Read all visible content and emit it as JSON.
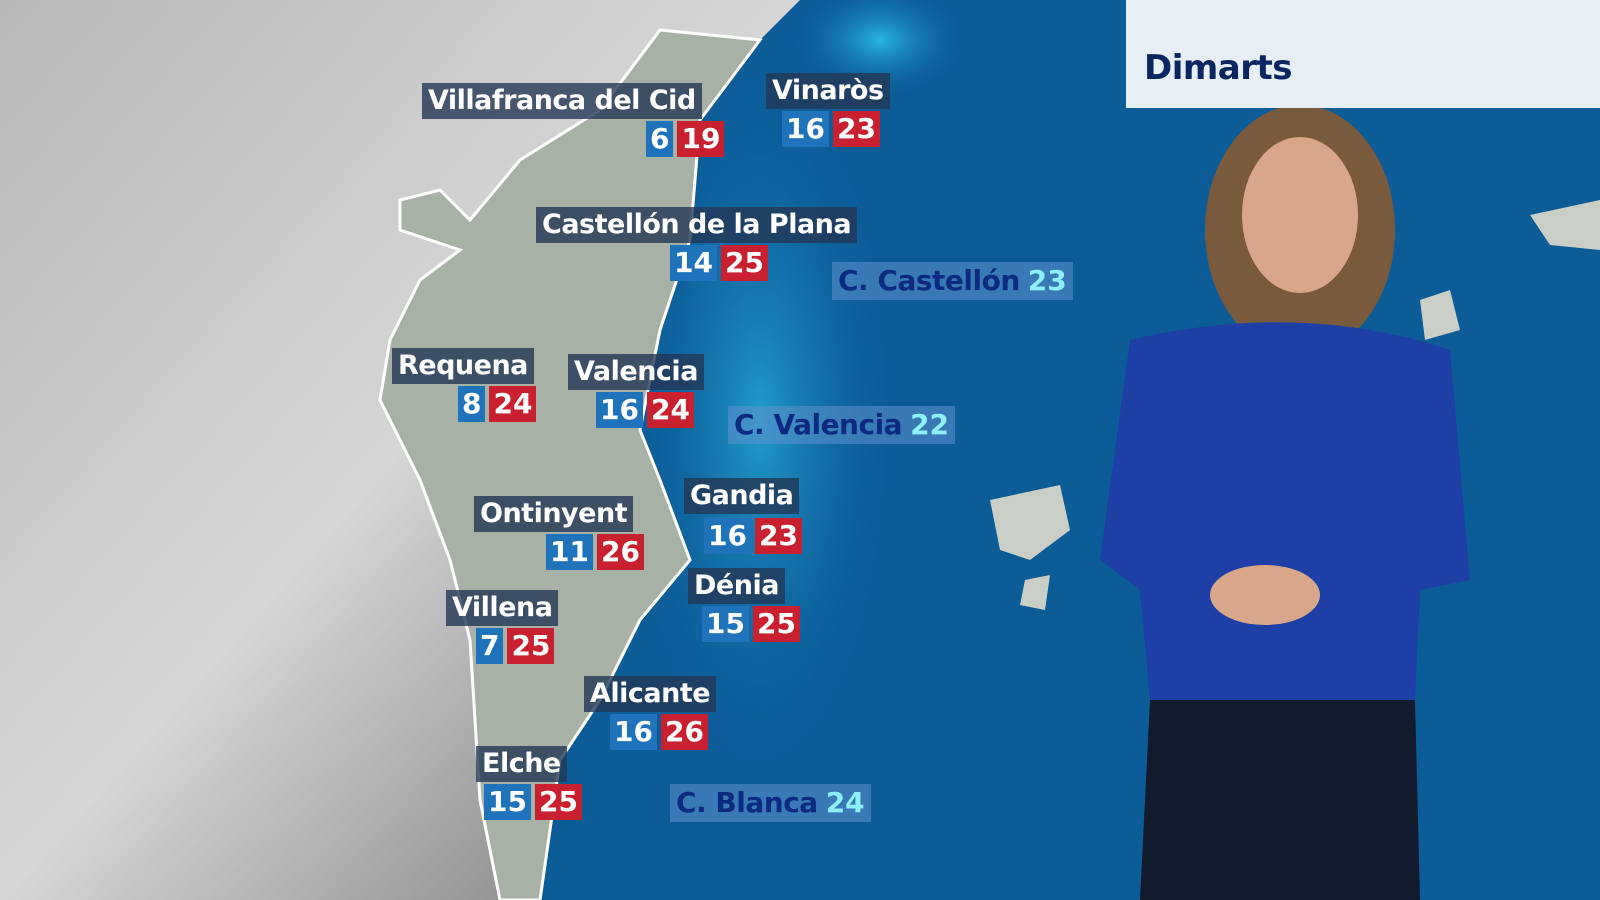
{
  "header": {
    "day": "Dimarts"
  },
  "cities": [
    {
      "name": "Villafranca del Cid",
      "min": "6",
      "max": "19"
    },
    {
      "name": "Vinaròs",
      "min": "16",
      "max": "23"
    },
    {
      "name": "Castellón de la Plana",
      "min": "14",
      "max": "25"
    },
    {
      "name": "Requena",
      "min": "8",
      "max": "24"
    },
    {
      "name": "Valencia",
      "min": "16",
      "max": "24"
    },
    {
      "name": "Gandia",
      "min": "16",
      "max": "23"
    },
    {
      "name": "Ontinyent",
      "min": "11",
      "max": "26"
    },
    {
      "name": "Dénia",
      "min": "15",
      "max": "25"
    },
    {
      "name": "Villena",
      "min": "7",
      "max": "25"
    },
    {
      "name": "Alicante",
      "min": "16",
      "max": "26"
    },
    {
      "name": "Elche",
      "min": "15",
      "max": "25"
    }
  ],
  "coastal": [
    {
      "name": "C. Castellón",
      "temp": "23"
    },
    {
      "name": "C. Valencia",
      "temp": "22"
    },
    {
      "name": "C. Blanca",
      "temp": "24"
    }
  ],
  "colors": {
    "min_temp": "#1f73bb",
    "max_temp": "#c8202e",
    "sea": "#0c5c98",
    "label_bg": "#233755"
  }
}
